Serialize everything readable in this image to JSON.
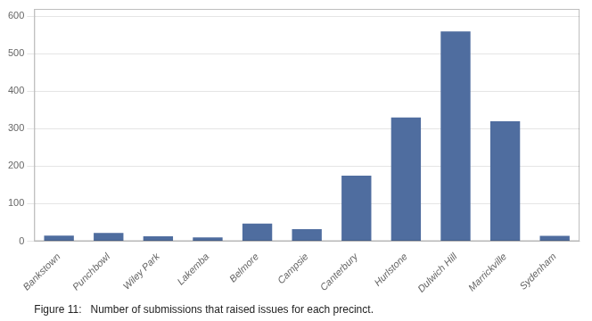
{
  "chart_data": {
    "type": "bar",
    "categories": [
      "Bankstown",
      "Punchbowl",
      "Wiley Park",
      "Lakemba",
      "Belmore",
      "Campsie",
      "Canterbury",
      "Hurlstone",
      "Dulwich Hill",
      "Marrickville",
      "Sydenham"
    ],
    "values": [
      15,
      22,
      13,
      10,
      47,
      32,
      175,
      330,
      560,
      320,
      14
    ],
    "color": "#4F6D9F",
    "ylim": [
      0,
      620
    ],
    "yticks": [
      0,
      100,
      200,
      300,
      400,
      500,
      600
    ],
    "grid": true,
    "annotations": [
      "Figure 11:",
      "Number of submissions that raised issues for each precinct."
    ]
  }
}
